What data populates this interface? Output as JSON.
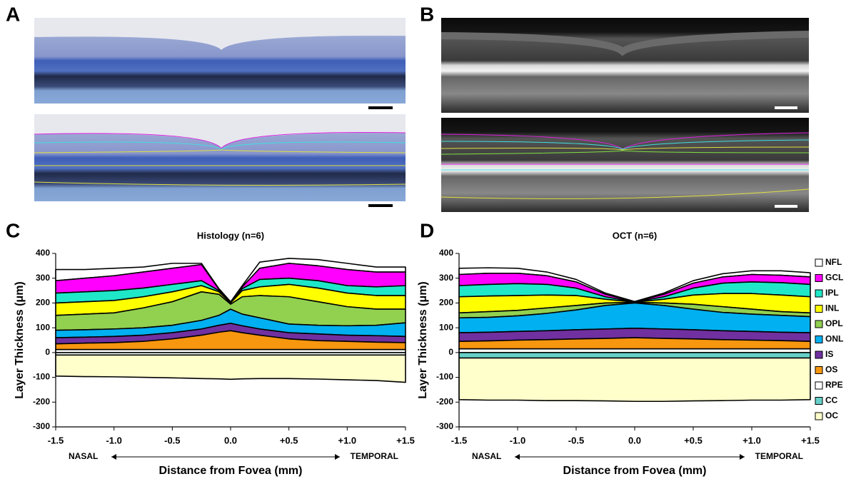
{
  "panel_labels": [
    "A",
    "B",
    "C",
    "D"
  ],
  "chart_data": [
    {
      "type": "area",
      "title": "Histology (n=6)",
      "xlabel": "Distance from Fovea (mm)",
      "ylabel": "Layer Thickness (μm)",
      "annotations": [
        "NASAL",
        "TEMPORAL"
      ],
      "x": [
        -1.5,
        -1.25,
        -1,
        -0.75,
        -0.5,
        -0.25,
        -0.1,
        0,
        0.1,
        0.25,
        0.5,
        0.75,
        1,
        1.25,
        1.5
      ],
      "xlim": [
        -1.5,
        1.5
      ],
      "xticks": [
        {
          "value": -1.5,
          "label": "-1.5"
        },
        {
          "value": -1,
          "label": "-1.0"
        },
        {
          "value": -0.5,
          "label": "-0.5"
        },
        {
          "value": 0,
          "label": "0.0"
        },
        {
          "value": 0.5,
          "label": "+0.5"
        },
        {
          "value": 1,
          "label": "+1.0"
        },
        {
          "value": 1.5,
          "label": "+1.5"
        }
      ],
      "ylim": [
        -300,
        400
      ],
      "yticks": [
        400,
        300,
        200,
        100,
        0,
        -100,
        -200,
        -300
      ],
      "series": [
        {
          "name": "NFL",
          "color": "#ffffff",
          "values": [
            45,
            35,
            30,
            20,
            20,
            5,
            3,
            2,
            5,
            25,
            20,
            25,
            25,
            20,
            20
          ]
        },
        {
          "name": "GCL",
          "color": "#ff00ff",
          "values": [
            50,
            55,
            60,
            65,
            65,
            65,
            5,
            1,
            7,
            45,
            60,
            60,
            65,
            60,
            55
          ]
        },
        {
          "name": "IPL",
          "color": "#1ee8c8",
          "values": [
            40,
            40,
            40,
            35,
            30,
            20,
            5,
            2,
            8,
            30,
            25,
            30,
            30,
            35,
            40
          ]
        },
        {
          "name": "INL",
          "color": "#ffff00",
          "values": [
            50,
            50,
            50,
            45,
            40,
            25,
            10,
            5,
            25,
            35,
            50,
            55,
            55,
            55,
            55
          ]
        },
        {
          "name": "OPL",
          "color": "#92d050",
          "values": [
            60,
            63,
            65,
            80,
            95,
            115,
            85,
            20,
            70,
            90,
            110,
            95,
            77,
            65,
            55
          ]
        },
        {
          "name": "ONL",
          "color": "#00b0f0",
          "values": [
            30,
            30,
            30,
            30,
            30,
            35,
            40,
            57,
            47,
            45,
            35,
            35,
            38,
            42,
            55
          ]
        },
        {
          "name": "IS",
          "color": "#7030a0",
          "values": [
            25,
            24,
            25,
            25,
            25,
            25,
            28,
            30,
            28,
            25,
            25,
            27,
            25,
            26,
            25
          ]
        },
        {
          "name": "OS",
          "color": "#f7960f",
          "values": [
            23,
            26,
            28,
            33,
            43,
            58,
            70,
            76,
            68,
            58,
            43,
            36,
            33,
            30,
            28
          ]
        },
        {
          "name": "RPE",
          "color": "#ffffff",
          "values": [
            12,
            12,
            12,
            12,
            12,
            12,
            12,
            12,
            12,
            12,
            12,
            12,
            12,
            12,
            12
          ]
        },
        {
          "name": "CC",
          "color": "#e8f6f4",
          "values": [
            -10,
            -10,
            -10,
            -10,
            -10,
            -10,
            -10,
            -10,
            -10,
            -10,
            -10,
            -10,
            -10,
            -10,
            -10
          ]
        },
        {
          "name": "OC",
          "color": "#ffffcc",
          "values": [
            -85,
            -87,
            -88,
            -90,
            -92,
            -95,
            -96,
            -98,
            -96,
            -95,
            -95,
            -97,
            -100,
            -103,
            -110
          ]
        }
      ]
    },
    {
      "type": "area",
      "title": "OCT (n=6)",
      "xlabel": "Distance from Fovea (mm)",
      "ylabel": "Layer Thickness (μm)",
      "annotations": [
        "NASAL",
        "TEMPORAL"
      ],
      "legend": "right",
      "x": [
        -1.5,
        -1.25,
        -1,
        -0.75,
        -0.5,
        -0.25,
        0,
        0.25,
        0.5,
        0.75,
        1,
        1.25,
        1.5
      ],
      "xlim": [
        -1.5,
        1.5
      ],
      "xticks": [
        {
          "value": -1.5,
          "label": "-1.5"
        },
        {
          "value": -1,
          "label": "-1.0"
        },
        {
          "value": -0.5,
          "label": "-0.5"
        },
        {
          "value": 0,
          "label": "0.0"
        },
        {
          "value": 0.5,
          "label": "+0.5"
        },
        {
          "value": 1,
          "label": "+1.0"
        },
        {
          "value": 1.5,
          "label": "+1.5"
        }
      ],
      "ylim": [
        -300,
        400
      ],
      "yticks": [
        400,
        300,
        200,
        100,
        0,
        -100,
        -200,
        -300
      ],
      "series": [
        {
          "name": "NFL",
          "color": "#ffffff",
          "values": [
            25,
            22,
            20,
            15,
            10,
            5,
            1,
            5,
            10,
            13,
            15,
            18,
            17
          ]
        },
        {
          "name": "GCL",
          "color": "#ff00ff",
          "values": [
            45,
            45,
            42,
            35,
            25,
            10,
            1,
            10,
            20,
            25,
            30,
            30,
            30
          ]
        },
        {
          "name": "IPL",
          "color": "#1ee8c8",
          "values": [
            45,
            47,
            48,
            43,
            30,
            10,
            1,
            10,
            28,
            42,
            47,
            50,
            50
          ]
        },
        {
          "name": "INL",
          "color": "#ffff00",
          "values": [
            65,
            63,
            60,
            52,
            40,
            15,
            1,
            15,
            37,
            53,
            63,
            67,
            65
          ]
        },
        {
          "name": "OPL",
          "color": "#92d050",
          "values": [
            20,
            23,
            22,
            22,
            18,
            10,
            2,
            10,
            20,
            23,
            20,
            15,
            15
          ]
        },
        {
          "name": "ONL",
          "color": "#00b0f0",
          "values": [
            60,
            60,
            63,
            70,
            80,
            95,
            102,
            95,
            83,
            74,
            70,
            68,
            65
          ]
        },
        {
          "name": "IS",
          "color": "#7030a0",
          "values": [
            35,
            35,
            35,
            36,
            37,
            38,
            38,
            38,
            37,
            36,
            35,
            34,
            35
          ]
        },
        {
          "name": "OS",
          "color": "#f7960f",
          "values": [
            30,
            32,
            35,
            37,
            40,
            42,
            45,
            42,
            40,
            37,
            35,
            33,
            30
          ]
        },
        {
          "name": "RPE",
          "color": "#ffffff",
          "values": [
            15,
            15,
            15,
            15,
            15,
            15,
            15,
            15,
            15,
            15,
            15,
            15,
            15
          ]
        },
        {
          "name": "CC",
          "color": "#66d0c8",
          "values": [
            -22,
            -22,
            -22,
            -22,
            -22,
            -22,
            -22,
            -22,
            -22,
            -22,
            -22,
            -22,
            -22
          ]
        },
        {
          "name": "OC",
          "color": "#ffffcc",
          "values": [
            -168,
            -170,
            -170,
            -172,
            -172,
            -173,
            -175,
            -175,
            -173,
            -172,
            -170,
            -170,
            -168
          ]
        }
      ]
    }
  ]
}
